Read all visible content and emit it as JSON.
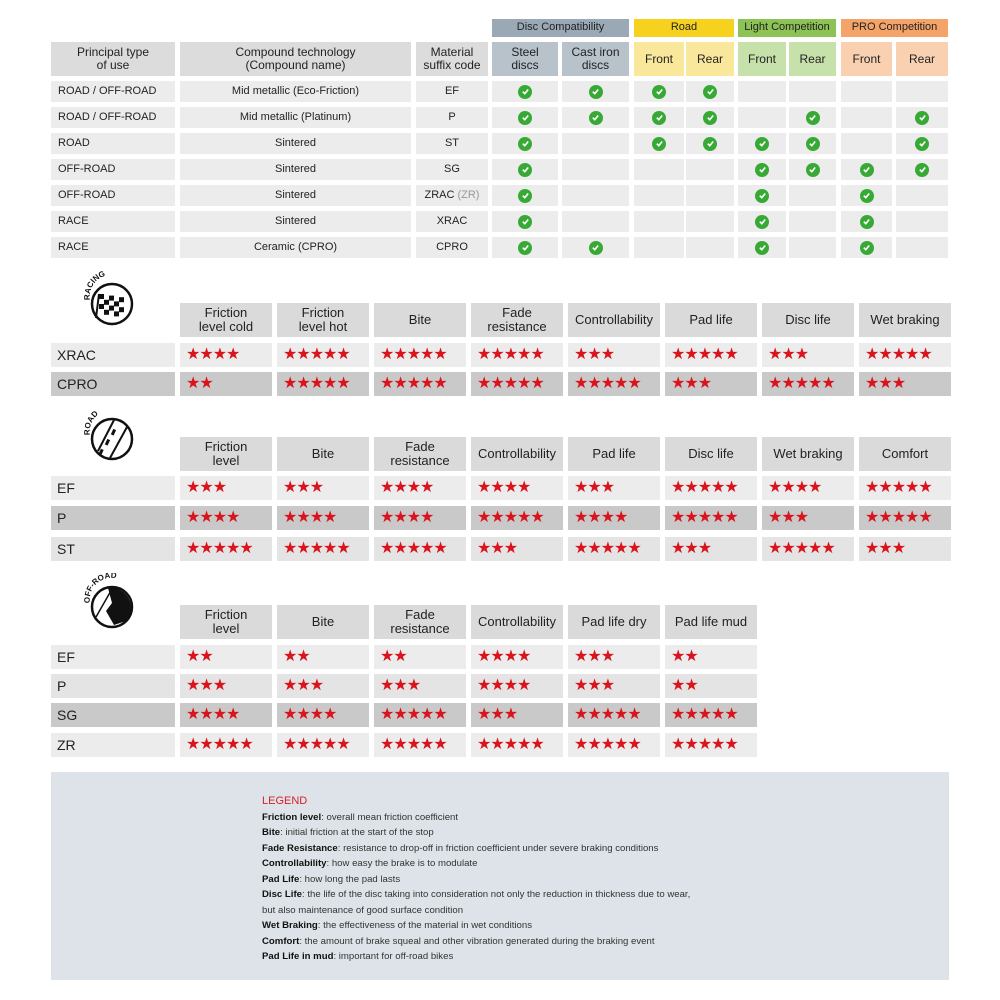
{
  "compat": {
    "groups": [
      {
        "label": "Disc Compatibility",
        "color": "#9aa9b5"
      },
      {
        "label": "Road",
        "color": "#f6d21f"
      },
      {
        "label": "Light Competition",
        "color": "#8dc255"
      },
      {
        "label": "PRO Competition",
        "color": "#f4a469"
      }
    ],
    "headers": [
      "Principal type\nof use",
      "Compound technology\n(Compound name)",
      "Material\nsuffix code",
      "Steel\ndiscs",
      "Cast iron\ndiscs",
      "Front",
      "Rear",
      "Front",
      "Rear",
      "Front",
      "Rear"
    ],
    "header_colors": [
      "#dcdcdc",
      "#dcdcdc",
      "#dcdcdc",
      "#b8c2cb",
      "#b8c2cb",
      "#f9e89c",
      "#f9e89c",
      "#c7e1ab",
      "#c7e1ab",
      "#f9d1b1",
      "#f9d1b1"
    ],
    "rows": [
      {
        "type": "ROAD / OFF-ROAD",
        "compound": "Mid metallic (Eco-Friction)",
        "code": "EF",
        "code_extra": "",
        "checks": [
          true,
          true,
          true,
          true,
          false,
          false,
          false,
          false
        ]
      },
      {
        "type": "ROAD / OFF-ROAD",
        "compound": "Mid metallic (Platinum)",
        "code": "P",
        "code_extra": "",
        "checks": [
          true,
          true,
          true,
          true,
          false,
          true,
          false,
          true
        ]
      },
      {
        "type": "ROAD",
        "compound": "Sintered",
        "code": "ST",
        "code_extra": "",
        "checks": [
          true,
          false,
          true,
          true,
          true,
          true,
          false,
          true
        ]
      },
      {
        "type": "OFF-ROAD",
        "compound": "Sintered",
        "code": "SG",
        "code_extra": "",
        "checks": [
          true,
          false,
          false,
          false,
          true,
          true,
          true,
          true
        ]
      },
      {
        "type": "OFF-ROAD",
        "compound": "Sintered",
        "code": "ZRAC",
        "code_extra": "(ZR)",
        "checks": [
          true,
          false,
          false,
          false,
          true,
          false,
          true,
          false
        ]
      },
      {
        "type": "RACE",
        "compound": "Sintered",
        "code": "XRAC",
        "code_extra": "",
        "checks": [
          true,
          false,
          false,
          false,
          true,
          false,
          true,
          false
        ]
      },
      {
        "type": "RACE",
        "compound": "Ceramic (CPRO)",
        "code": "CPRO",
        "code_extra": "",
        "checks": [
          true,
          true,
          false,
          false,
          true,
          false,
          true,
          false
        ]
      }
    ]
  },
  "ratings": [
    {
      "icon": "racing-icon",
      "icon_text": "RACING",
      "headers": [
        "Friction\nlevel cold",
        "Friction\nlevel hot",
        "Bite",
        "Fade\nresistance",
        "Controllability",
        "Pad life",
        "Disc life",
        "Wet braking"
      ],
      "rows": [
        {
          "label": "XRAC",
          "shade": "light",
          "stars": [
            4,
            5,
            5,
            5,
            3,
            5,
            3,
            5
          ]
        },
        {
          "label": "CPRO",
          "shade": "dark",
          "stars": [
            2,
            5,
            5,
            5,
            5,
            3,
            5,
            3
          ]
        }
      ]
    },
    {
      "icon": "road-icon",
      "icon_text": "ROAD",
      "headers": [
        "Friction\nlevel",
        "Bite",
        "Fade\nresistance",
        "Controllability",
        "Pad life",
        "Disc life",
        "Wet braking",
        "Comfort"
      ],
      "rows": [
        {
          "label": "EF",
          "shade": "light",
          "stars": [
            3,
            3,
            4,
            4,
            3,
            5,
            4,
            5
          ]
        },
        {
          "label": "P",
          "shade": "dark",
          "stars": [
            4,
            4,
            4,
            5,
            4,
            5,
            3,
            5
          ]
        },
        {
          "label": "ST",
          "shade": "mid",
          "stars": [
            5,
            5,
            5,
            3,
            5,
            3,
            5,
            3
          ]
        }
      ]
    },
    {
      "icon": "off-road-icon",
      "icon_text": "OFF-ROAD",
      "headers": [
        "Friction\nlevel",
        "Bite",
        "Fade\nresistance",
        "Controllability",
        "Pad life dry",
        "Pad life mud"
      ],
      "rows": [
        {
          "label": "EF",
          "shade": "light",
          "stars": [
            2,
            2,
            2,
            4,
            3,
            2
          ]
        },
        {
          "label": "P",
          "shade": "mid",
          "stars": [
            3,
            3,
            3,
            4,
            3,
            2
          ]
        },
        {
          "label": "SG",
          "shade": "dark",
          "stars": [
            4,
            4,
            5,
            3,
            5,
            5
          ]
        },
        {
          "label": "ZR",
          "shade": "light",
          "stars": [
            5,
            5,
            5,
            5,
            5,
            5
          ]
        }
      ]
    }
  ],
  "legend": {
    "title": "LEGEND",
    "items": [
      {
        "term": "Friction level",
        "desc": ": overall mean friction coefficient"
      },
      {
        "term": "Bite",
        "desc": ": initial friction at the start of the stop"
      },
      {
        "term": "Fade Resistance",
        "desc": ": resistance to drop-off in friction coefficient under severe braking conditions"
      },
      {
        "term": "Controllability",
        "desc": ": how easy the brake is to modulate"
      },
      {
        "term": "Pad Life",
        "desc": ": how long the pad lasts"
      },
      {
        "term": "Disc Life",
        "desc": ": the life of the disc taking into consideration not only the reduction in thickness due to wear,"
      },
      {
        "term": "",
        "desc": "but also maintenance of good surface condition"
      },
      {
        "term": "Wet Braking",
        "desc": ": the effectiveness of the material in wet conditions"
      },
      {
        "term": "Comfort",
        "desc": ": the amount of brake squeal and other vibration generated during the braking event"
      },
      {
        "term": "Pad Life in mud",
        "desc": ": important for off-road bikes"
      }
    ]
  },
  "colors": {
    "star": "#d9141c",
    "check": "#38a935",
    "legend_bg": "#dde3e8",
    "legend_title": "#d4202b"
  }
}
